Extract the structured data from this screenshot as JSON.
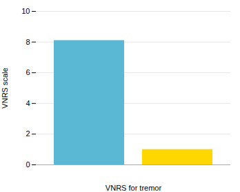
{
  "chart_data": {
    "type": "bar",
    "xlabel": "VNRS for tremor",
    "ylabel": "VNRS scale",
    "categories": [
      null,
      null
    ],
    "values": [
      8.1,
      1.0
    ],
    "colors": [
      "#5BB8D4",
      "#FFD700"
    ],
    "ylim": [
      0,
      10
    ],
    "yticks": [
      0,
      2,
      4,
      6,
      8,
      10
    ],
    "grid": true,
    "tick_labels": "y"
  }
}
